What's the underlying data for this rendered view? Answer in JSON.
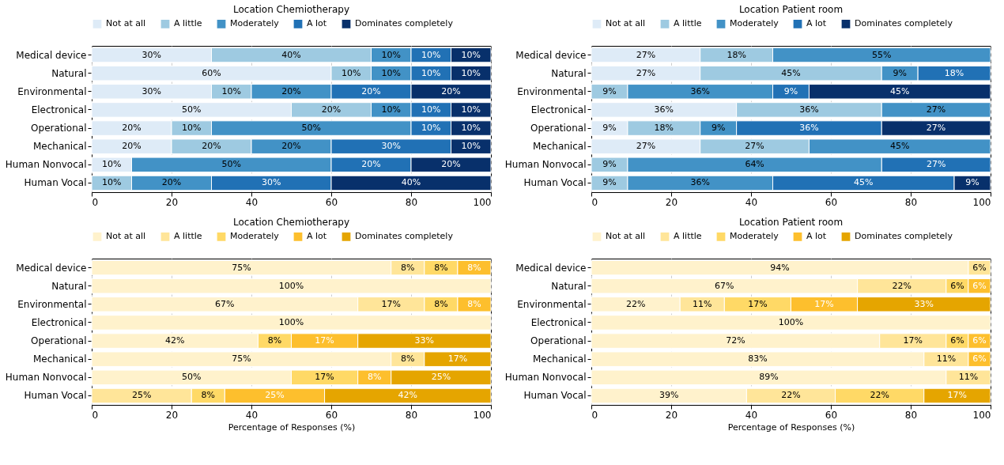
{
  "chart_data": [
    {
      "type": "bar",
      "orientation": "horizontal",
      "stacked": true,
      "title": "Location Chemiotherapy",
      "categories": [
        "Medical device",
        "Natural",
        "Environmental",
        "Electronical",
        "Operational",
        "Mechanical ",
        "Human Nonvocal",
        "Human Vocal"
      ],
      "xlim": [
        0,
        100
      ],
      "xticks": [
        0,
        20,
        40,
        60,
        80,
        100
      ],
      "grid": "x",
      "legend": "top",
      "series": [
        {
          "name": "Not at all",
          "color": "#deebf7",
          "values": [
            30,
            60,
            30,
            50,
            20,
            20,
            10,
            null
          ],
          "value_labels": [
            "30%",
            "60%",
            "30%",
            "50%",
            "20%",
            "20%",
            "10%",
            null
          ]
        },
        {
          "name": "A little",
          "color": "#9ecae1",
          "values": [
            40,
            10,
            10,
            20,
            10,
            20,
            null,
            10
          ],
          "value_labels": [
            "40%",
            "10%",
            "10%",
            "20%",
            "10%",
            "20%",
            null,
            "10%"
          ]
        },
        {
          "name": "Moderately",
          "color": "#4292c6",
          "values": [
            10,
            10,
            20,
            10,
            50,
            20,
            50,
            20
          ],
          "value_labels": [
            "10%",
            "10%",
            "20%",
            "10%",
            "50%",
            "20%",
            "50%",
            "20%"
          ]
        },
        {
          "name": "A lot",
          "color": "#2171b5",
          "values": [
            10,
            10,
            20,
            10,
            10,
            30,
            20,
            30
          ],
          "value_labels": [
            "10%",
            "10%",
            "20%",
            "10%",
            "10%",
            "30%",
            "20%",
            "30%"
          ]
        },
        {
          "name": "Dominates completely",
          "color": "#08306b",
          "values": [
            10,
            10,
            20,
            10,
            10,
            10,
            20,
            40
          ],
          "value_labels": [
            "10%",
            "10%",
            "20%",
            "10%",
            "10%",
            "10%",
            "20%",
            "40%"
          ]
        }
      ]
    },
    {
      "type": "bar",
      "orientation": "horizontal",
      "stacked": true,
      "title": "Location Patient room",
      "categories": [
        "Medical device",
        "Natural",
        "Environmental",
        "Electronical",
        "Operational",
        "Mechanical ",
        "Human Nonvocal",
        "Human Vocal"
      ],
      "xlim": [
        0,
        100
      ],
      "xticks": [
        0,
        20,
        40,
        60,
        80,
        100
      ],
      "grid": "x",
      "legend": "top",
      "series": [
        {
          "name": "Not at all",
          "color": "#deebf7",
          "values": [
            27.27,
            27.27,
            null,
            36.36,
            9.09,
            27.27,
            null,
            null
          ],
          "value_labels": [
            "27%",
            "27%",
            null,
            "36%",
            "9%",
            "27%",
            null,
            null
          ]
        },
        {
          "name": "A little",
          "color": "#9ecae1",
          "values": [
            18.18,
            45.45,
            9.09,
            36.36,
            18.18,
            27.27,
            9.09,
            9.09
          ],
          "value_labels": [
            "18%",
            "45%",
            "9%",
            "36%",
            "18%",
            "27%",
            "9%",
            "9%"
          ]
        },
        {
          "name": "Moderately",
          "color": "#4292c6",
          "values": [
            54.55,
            9.09,
            36.36,
            27.27,
            9.09,
            45.45,
            63.64,
            36.36
          ],
          "value_labels": [
            "55%",
            "9%",
            "36%",
            "27%",
            "9%",
            "45%",
            "64%",
            "36%"
          ]
        },
        {
          "name": "A lot",
          "color": "#2171b5",
          "values": [
            null,
            18.18,
            9.09,
            null,
            36.36,
            null,
            27.27,
            45.45
          ],
          "value_labels": [
            null,
            "18%",
            "9%",
            null,
            "36%",
            null,
            "27%",
            "45%"
          ]
        },
        {
          "name": "Dominates completely",
          "color": "#08306b",
          "values": [
            null,
            null,
            45.45,
            null,
            27.27,
            null,
            null,
            9.09
          ],
          "value_labels": [
            null,
            null,
            "45%",
            null,
            "27%",
            null,
            null,
            "9%"
          ]
        }
      ]
    },
    {
      "type": "bar",
      "orientation": "horizontal",
      "stacked": true,
      "title": "Location Chemiotherapy",
      "xlabel": "Percentage of Responses (%)",
      "categories": [
        "Medical device",
        "Natural",
        "Environmental",
        "Electronical",
        "Operational",
        "Mechanical ",
        "Human Nonvocal",
        "Human Vocal"
      ],
      "xlim": [
        0,
        100
      ],
      "xticks": [
        0,
        20,
        40,
        60,
        80,
        100
      ],
      "grid": "x",
      "legend": "top",
      "series": [
        {
          "name": "Not at all",
          "color": "#fff2cc",
          "values": [
            75,
            100,
            66.67,
            100,
            41.67,
            75,
            50,
            null
          ],
          "value_labels": [
            "75%",
            "100%",
            "67%",
            "100%",
            "42%",
            "75%",
            "50%",
            null
          ]
        },
        {
          "name": "A little",
          "color": "#ffe599",
          "values": [
            8.33,
            null,
            16.67,
            null,
            null,
            8.33,
            null,
            25
          ],
          "value_labels": [
            "8%",
            null,
            "17%",
            null,
            null,
            "8%",
            null,
            "25%"
          ]
        },
        {
          "name": "Moderately",
          "color": "#ffd966",
          "values": [
            8.33,
            null,
            8.33,
            null,
            8.33,
            null,
            16.67,
            8.33
          ],
          "value_labels": [
            "8%",
            null,
            "8%",
            null,
            "8%",
            null,
            "17%",
            "8%"
          ]
        },
        {
          "name": "A lot",
          "color": "#fdbf2d",
          "values": [
            8.33,
            null,
            8.33,
            null,
            16.67,
            null,
            8.33,
            25
          ],
          "value_labels": [
            "8%",
            null,
            "8%",
            null,
            "17%",
            null,
            "8%",
            "25%"
          ]
        },
        {
          "name": "Dominates completely",
          "color": "#e5a500",
          "values": [
            null,
            null,
            null,
            null,
            33.33,
            16.67,
            25,
            41.67
          ],
          "value_labels": [
            null,
            null,
            null,
            null,
            "33%",
            "17%",
            "25%",
            "42%"
          ]
        }
      ]
    },
    {
      "type": "bar",
      "orientation": "horizontal",
      "stacked": true,
      "title": "Location Patient room",
      "xlabel": "Percentage of Responses (%)",
      "categories": [
        "Medical device",
        "Natural",
        "Environmental",
        "Electronical",
        "Operational",
        "Mechanical ",
        "Human Nonvocal",
        "Human Vocal"
      ],
      "xlim": [
        0,
        100
      ],
      "xticks": [
        0,
        20,
        40,
        60,
        80,
        100
      ],
      "grid": "x",
      "legend": "top",
      "series": [
        {
          "name": "Not at all",
          "color": "#fff2cc",
          "values": [
            94.44,
            66.66,
            22.22,
            100,
            72.22,
            83.33,
            88.88,
            38.88
          ],
          "value_labels": [
            "94%",
            "67%",
            "22%",
            "100%",
            "72%",
            "83%",
            "89%",
            "39%"
          ]
        },
        {
          "name": "A little",
          "color": "#ffe599",
          "values": [
            5.55,
            22.22,
            11.11,
            null,
            16.66,
            11.11,
            11.11,
            22.22
          ],
          "value_labels": [
            "6%",
            "22%",
            "11%",
            null,
            "17%",
            "11%",
            "11%",
            "22%"
          ]
        },
        {
          "name": "Moderately",
          "color": "#ffd966",
          "values": [
            null,
            5.55,
            16.66,
            null,
            5.55,
            null,
            null,
            22.22
          ],
          "value_labels": [
            null,
            "6%",
            "17%",
            null,
            "6%",
            null,
            null,
            "22%"
          ]
        },
        {
          "name": "A lot",
          "color": "#fdbf2d",
          "values": [
            null,
            5.55,
            16.66,
            null,
            5.55,
            5.55,
            null,
            null
          ],
          "value_labels": [
            null,
            "6%",
            "17%",
            null,
            "6%",
            "6%",
            null,
            null
          ]
        },
        {
          "name": "Dominates completely",
          "color": "#e5a500",
          "values": [
            null,
            null,
            33.33,
            null,
            null,
            null,
            null,
            16.66
          ],
          "value_labels": [
            null,
            null,
            "33%",
            null,
            null,
            null,
            null,
            "17%"
          ]
        }
      ]
    }
  ]
}
